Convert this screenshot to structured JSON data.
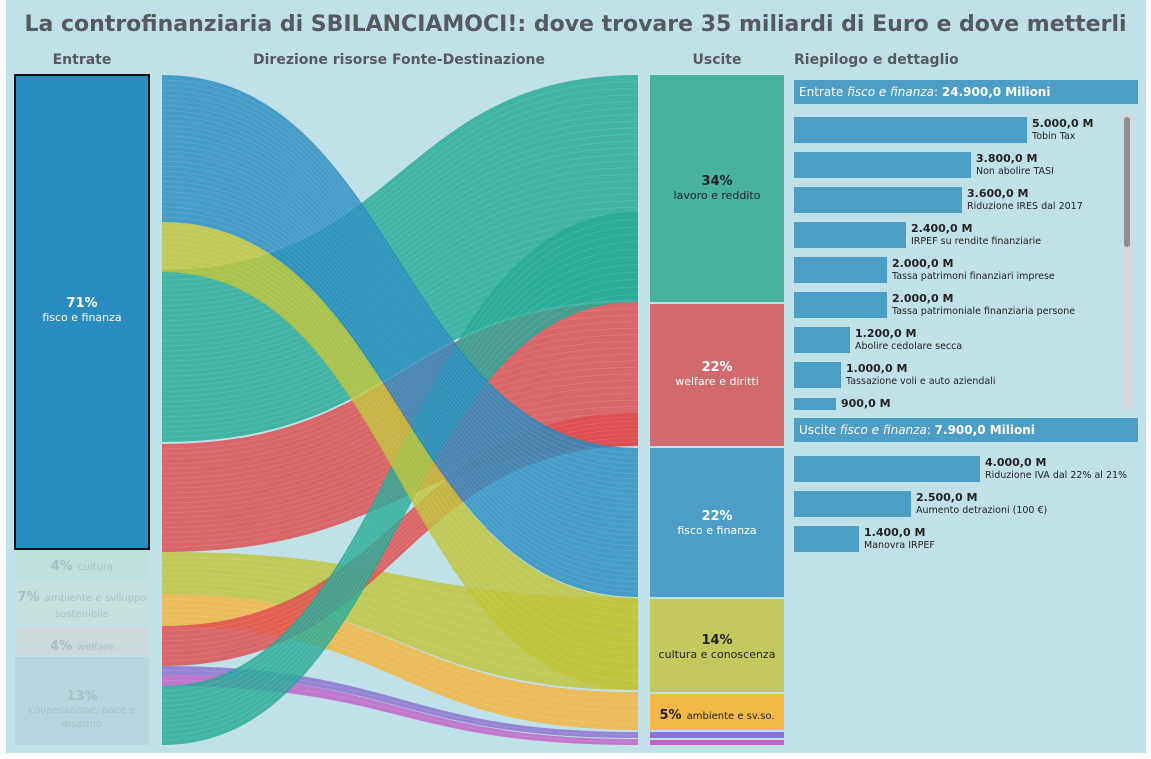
{
  "title": "La controfinanziaria di SBILANCIAMOCI!: dove trovare 35 miliardi di Euro e dove metterli",
  "headers": {
    "entrate": "Entrate",
    "direzione": "Direzione risorse Fonte-Destinazione",
    "uscite": "Uscite",
    "riepilogo": "Riepilogo e dettaglio"
  },
  "colors": {
    "blue": "#2a8cc0",
    "green": "#26a996",
    "red": "#de4a4d",
    "yellowgreen": "#c0c53a",
    "orange": "#f4b33a",
    "purple": "#8b6fd0",
    "magenta": "#c060c8",
    "panel_blue": "#4c9ec6"
  },
  "chart_data": {
    "type": "sankey",
    "title": "La controfinanziaria di SBILANCIAMOCI!: dove trovare 35 miliardi di Euro e dove metterli",
    "sources": [
      {
        "pct": "71%",
        "name": "fisco e finanza",
        "share": 71
      },
      {
        "pct": "4%",
        "name": "cultura",
        "share": 4
      },
      {
        "pct": "7%",
        "name": "ambiente e sviluppo sostenibile",
        "share": 7
      },
      {
        "pct": "4%",
        "name": "welfare",
        "share": 4
      },
      {
        "pct": "13%",
        "name": "cooperazione, pace e disarmo",
        "share": 13
      }
    ],
    "targets": [
      {
        "pct": "34%",
        "name": "lavoro e reddito",
        "share": 34
      },
      {
        "pct": "22%",
        "name": "welfare e diritti",
        "share": 22
      },
      {
        "pct": "22%",
        "name": "fisco e finanza",
        "share": 22
      },
      {
        "pct": "14%",
        "name": "cultura e conoscenza",
        "share": 14
      },
      {
        "pct": "5%",
        "name": "ambiente e sv.so.",
        "share": 5
      },
      {
        "pct": "",
        "name": "",
        "share": 1.5
      },
      {
        "pct": "",
        "name": "",
        "share": 1.5
      }
    ],
    "selected_source": "fisco e finanza"
  },
  "panel": {
    "entrate_header": {
      "prefix": "Entrate ",
      "topic": "fisco e finanza",
      "sep": ": ",
      "amount": "24.900,0 Milioni"
    },
    "entrate_items": [
      {
        "value": 5000,
        "value_label": "5.000,0 M",
        "name": "Tobin Tax"
      },
      {
        "value": 3800,
        "value_label": "3.800,0 M",
        "name": "Non abolire TASI"
      },
      {
        "value": 3600,
        "value_label": "3.600,0 M",
        "name": "Riduzione IRES dal 2017"
      },
      {
        "value": 2400,
        "value_label": "2.400,0 M",
        "name": "IRPEF su rendite finanziarie"
      },
      {
        "value": 2000,
        "value_label": "2.000,0 M",
        "name": "Tassa patrimoni finanziari imprese"
      },
      {
        "value": 2000,
        "value_label": "2.000,0 M",
        "name": "Tassa patrimoniale finanziaria persone"
      },
      {
        "value": 1200,
        "value_label": "1.200,0 M",
        "name": "Abolire cedolare secca"
      },
      {
        "value": 1000,
        "value_label": "1.000,0 M",
        "name": "Tassazione voli e auto aziendali"
      },
      {
        "value": 900,
        "value_label": "900,0 M",
        "name": ""
      }
    ],
    "uscite_header": {
      "prefix": "Uscite ",
      "topic": "fisco e finanza",
      "sep": ": ",
      "amount": "7.900,0 Milioni"
    },
    "uscite_items": [
      {
        "value": 4000,
        "value_label": "4.000,0 M",
        "name": "Riduzione IVA dal 22% al 21%"
      },
      {
        "value": 2500,
        "value_label": "2.500,0 M",
        "name": "Aumento detrazioni (100 €)"
      },
      {
        "value": 1400,
        "value_label": "1.400,0 M",
        "name": "Manovra IRPEF"
      }
    ]
  }
}
